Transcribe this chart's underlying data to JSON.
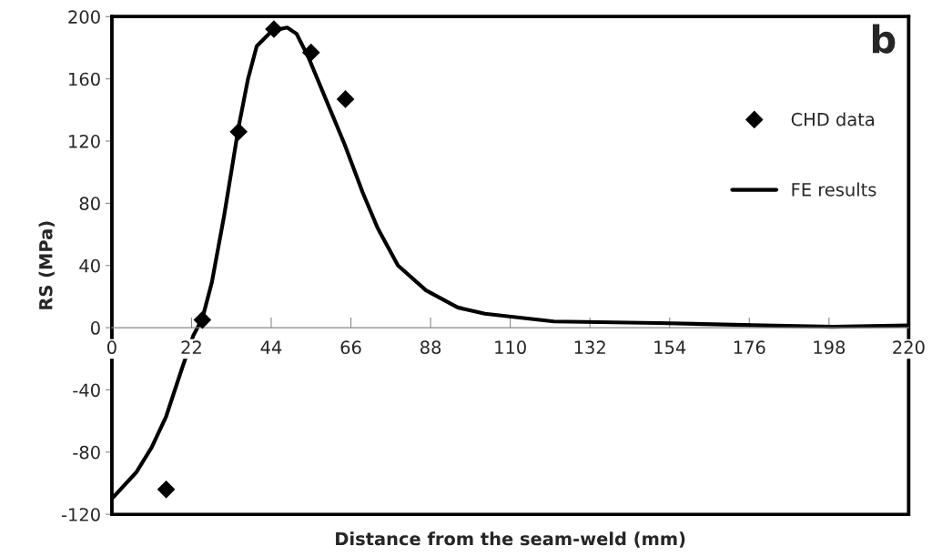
{
  "chart_data": {
    "type": "line",
    "xlabel": "Distance from the seam-weld (mm)",
    "ylabel": "RS (MPa)",
    "annotations": [
      "b"
    ],
    "xlim": [
      0,
      220
    ],
    "xticks": [
      0,
      22,
      44,
      66,
      88,
      110,
      132,
      154,
      176,
      198,
      220
    ],
    "ylim": [
      -120,
      200
    ],
    "yticks": [
      -120,
      -80,
      -40,
      0,
      40,
      80,
      120,
      160,
      200
    ],
    "grid": false,
    "legend": "right",
    "series": [
      {
        "name": "CHD data",
        "type": "scatter",
        "marker": "diamond",
        "color": "#000000",
        "x": [
          15,
          25,
          44.75,
          35,
          55,
          64.5
        ],
        "values": [
          -104,
          5,
          192,
          126,
          177,
          147
        ]
      },
      {
        "name": "FE results",
        "type": "line",
        "marker": "none",
        "line_style": "solid",
        "color": "#000000",
        "x": [
          0,
          6.75,
          11,
          15,
          19.25,
          22.5,
          25,
          27.6,
          31,
          35,
          37.6,
          40,
          44.25,
          48.4,
          51,
          54.25,
          59.25,
          64.25,
          69.25,
          73.4,
          79,
          86.75,
          95.5,
          103,
          122,
          151,
          180,
          199,
          220
        ],
        "values": [
          -110,
          -93,
          -77,
          -57,
          -27,
          -5,
          6,
          29,
          72,
          129,
          160,
          181,
          191,
          193,
          189,
          174,
          146,
          118,
          87,
          64,
          40,
          24,
          13,
          9,
          4,
          3,
          1.5,
          0.6,
          1.5
        ]
      }
    ]
  }
}
